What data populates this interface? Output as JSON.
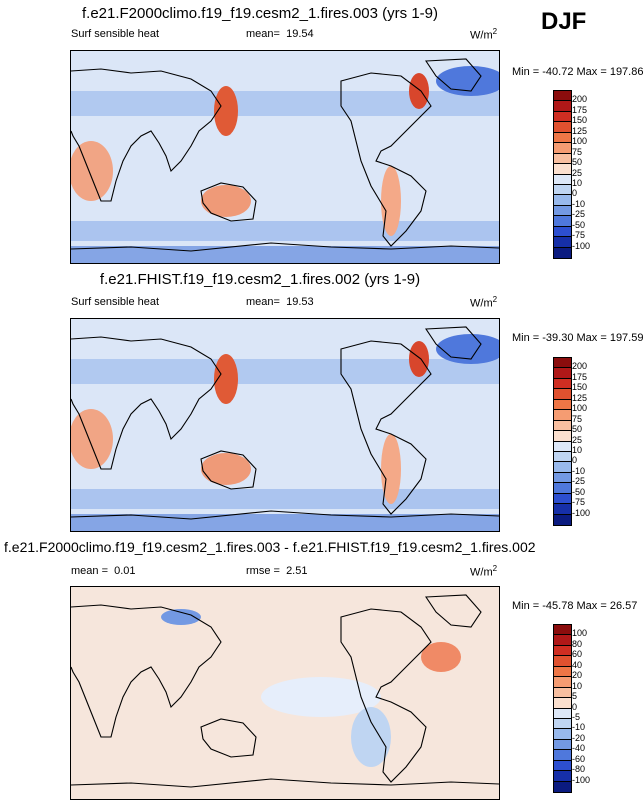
{
  "season": "DJF",
  "chart_data": [
    {
      "type": "heatmap",
      "title": "f.e21.F2000climo.f19_f19.cesm2_1.fires.003 (yrs 1-9)",
      "variable": "Surf sensible heat",
      "stat_label": "mean=",
      "stat_value": "19.54",
      "units": "W/m",
      "units_exp": "2",
      "minmax": "Min = -40.72 Max = 197.86",
      "levels": [
        "200",
        "175",
        "150",
        "125",
        "100",
        "75",
        "50",
        "25",
        "10",
        "0",
        "-10",
        "-25",
        "-50",
        "-75",
        "-100"
      ],
      "colors": [
        "#8b0d0d",
        "#b01818",
        "#cf2e22",
        "#e0512f",
        "#ee7646",
        "#f59c72",
        "#f8bfa0",
        "#fbe0cf",
        "#dde8f8",
        "#bfd5f2",
        "#98b9ec",
        "#7399e3",
        "#4f78dc",
        "#2d4fd0",
        "#162fa8",
        "#0b1b80"
      ]
    },
    {
      "type": "heatmap",
      "title": "f.e21.FHIST.f19_f19.cesm2_1.fires.002 (yrs 1-9)",
      "variable": "Surf sensible heat",
      "stat_label": "mean=",
      "stat_value": "19.53",
      "units": "W/m",
      "units_exp": "2",
      "minmax": "Min = -39.30 Max = 197.59",
      "levels": [
        "200",
        "175",
        "150",
        "125",
        "100",
        "75",
        "50",
        "25",
        "10",
        "0",
        "-10",
        "-25",
        "-50",
        "-75",
        "-100"
      ],
      "colors": [
        "#8b0d0d",
        "#b01818",
        "#cf2e22",
        "#e0512f",
        "#ee7646",
        "#f59c72",
        "#f8bfa0",
        "#fbe0cf",
        "#dde8f8",
        "#bfd5f2",
        "#98b9ec",
        "#7399e3",
        "#4f78dc",
        "#2d4fd0",
        "#162fa8",
        "#0b1b80"
      ]
    },
    {
      "type": "heatmap",
      "title": "f.e21.F2000climo.f19_f19.cesm2_1.fires.003 - f.e21.FHIST.f19_f19.cesm2_1.fires.002",
      "stat_label": "mean =",
      "stat_value": "0.01",
      "stat2_label": "rmse =",
      "stat2_value": "2.51",
      "units": "W/m",
      "units_exp": "2",
      "minmax": "Min = -45.78 Max = 26.57",
      "levels": [
        "100",
        "80",
        "60",
        "40",
        "20",
        "10",
        "5",
        "0",
        "-5",
        "-10",
        "-20",
        "-40",
        "-60",
        "-80",
        "-100"
      ],
      "colors": [
        "#8b0d0d",
        "#b01818",
        "#cf2e22",
        "#e0512f",
        "#ee7646",
        "#f59c72",
        "#f8bfa0",
        "#fbe0cf",
        "#dde8f8",
        "#bfd5f2",
        "#98b9ec",
        "#7399e3",
        "#4f78dc",
        "#2d4fd0",
        "#162fa8",
        "#0b1b80"
      ]
    }
  ]
}
